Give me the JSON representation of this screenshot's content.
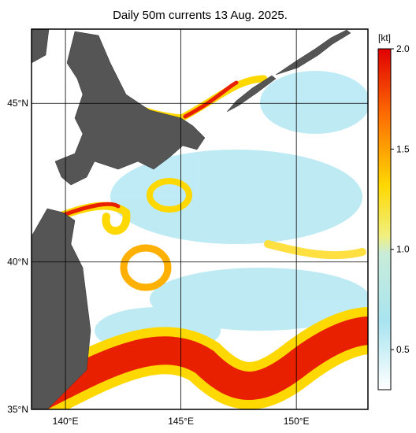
{
  "map": {
    "title": "Daily 50m currents 13 Aug. 2025.",
    "lat_lim": [
      35,
      47.2
    ],
    "lon_lim": [
      138.53,
      153.1
    ],
    "lat_ticks": [
      {
        "value": 45,
        "label": "45°N"
      },
      {
        "value": 40,
        "label": "40°N"
      },
      {
        "value": 35,
        "label": "35°N"
      }
    ],
    "lon_ticks": [
      {
        "value": 140,
        "label": "140°E"
      },
      {
        "value": 145,
        "label": "145°E"
      },
      {
        "value": 150,
        "label": "150°E"
      }
    ],
    "colorbar": {
      "unit": "[kt]",
      "lim": [
        0.3,
        2.0
      ],
      "ticks": [
        {
          "value": 2.0,
          "label": "2.0"
        },
        {
          "value": 1.5,
          "label": "1.5"
        },
        {
          "value": 1.0,
          "label": "1.0"
        },
        {
          "value": 0.5,
          "label": "0.5"
        }
      ]
    }
  }
}
